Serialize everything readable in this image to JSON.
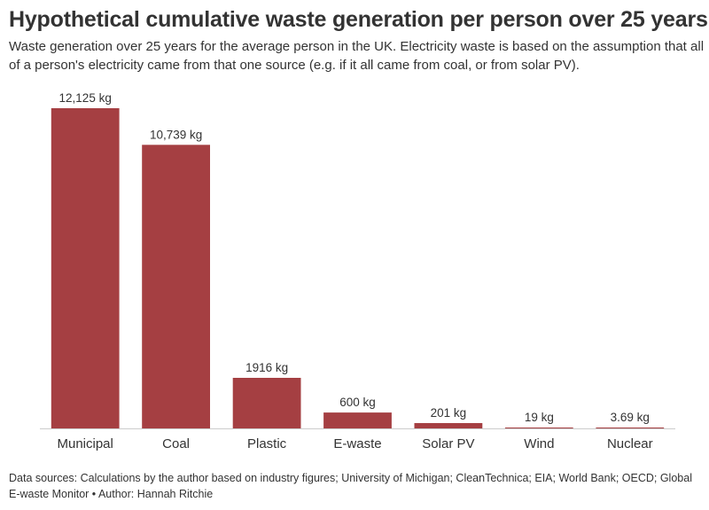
{
  "header": {
    "title": "Hypothetical cumulative waste generation per person over 25 years",
    "subtitle": "Waste generation over 25 years for the average person in the UK. Electricity waste is based on the assumption that all of a person's electricity came from that one source (e.g. if it all came from coal, or from solar PV)."
  },
  "footer": {
    "sources": "Data sources: Calculations by the author based on industry figures; University of Michigan; CleanTechnica; EIA; World Bank; OECD; Global E-waste Monitor • Author: Hannah Ritchie"
  },
  "chart_data": {
    "type": "bar",
    "categories": [
      "Municipal",
      "Coal",
      "Plastic",
      "E-waste",
      "Solar PV",
      "Wind",
      "Nuclear"
    ],
    "values": [
      12125,
      10739,
      1916,
      600,
      201,
      19,
      3.69
    ],
    "data_labels": [
      "12,125 kg",
      "10,739 kg",
      "1916 kg",
      "600 kg",
      "201 kg",
      "19 kg",
      "3.69 kg"
    ],
    "unit": "kg",
    "ylim": [
      0,
      12125
    ],
    "grid": false,
    "bar_color": "#a53f42",
    "axis_color": "#cccccc"
  }
}
